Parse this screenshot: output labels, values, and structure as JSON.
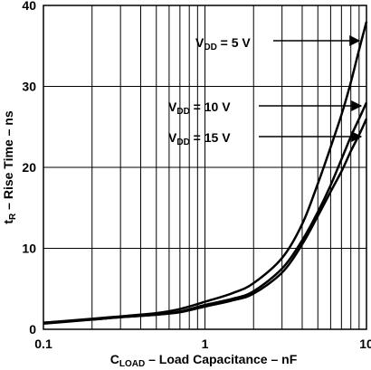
{
  "chart_data": {
    "type": "line",
    "x_scale": "log",
    "xlim": [
      0.1,
      10
    ],
    "ylim": [
      0,
      40
    ],
    "grid": true,
    "x_ticks": [
      0.1,
      1,
      10
    ],
    "x_tick_labels": [
      "0.1",
      "1",
      "10"
    ],
    "y_ticks": [
      0,
      10,
      20,
      30,
      40
    ],
    "y_tick_labels": [
      "0",
      "10",
      "20",
      "30",
      "40"
    ],
    "xlabel": {
      "main": "C",
      "sub": "LOAD",
      "rest": " –  Load Capacitance – nF"
    },
    "ylabel": {
      "main": "t",
      "sub": "R",
      "rest": " – Rise Time – ns"
    },
    "series": [
      {
        "annotation": {
          "main": "V",
          "sub": "DD",
          "rest": " = 5 V"
        },
        "x": [
          0.1,
          0.2,
          0.3,
          0.5,
          0.7,
          1,
          1.5,
          2,
          3,
          4,
          5,
          6,
          7,
          8,
          9,
          10
        ],
        "y": [
          0.8,
          1.3,
          1.6,
          2.0,
          2.5,
          3.4,
          4.5,
          5.7,
          8.8,
          13,
          18,
          22.5,
          26.5,
          30.5,
          34.5,
          38
        ]
      },
      {
        "annotation": {
          "main": "V",
          "sub": "DD",
          "rest": " = 10 V"
        },
        "x": [
          0.1,
          0.2,
          0.3,
          0.5,
          0.7,
          1,
          1.5,
          2,
          3,
          4,
          5,
          6,
          7,
          8,
          9,
          10
        ],
        "y": [
          0.8,
          1.2,
          1.5,
          1.8,
          2.2,
          3.0,
          3.8,
          4.7,
          7.5,
          11,
          14.5,
          17.8,
          21,
          23.8,
          26,
          28
        ]
      },
      {
        "annotation": {
          "main": "V",
          "sub": "DD",
          "rest": " = 15 V"
        },
        "x": [
          0.1,
          0.2,
          0.3,
          0.5,
          0.7,
          1,
          1.5,
          2,
          3,
          4,
          5,
          6,
          7,
          8,
          9,
          10
        ],
        "y": [
          0.7,
          1.2,
          1.5,
          1.8,
          2.1,
          2.8,
          3.6,
          4.4,
          7.0,
          10.5,
          14,
          17,
          19.5,
          22,
          24,
          26
        ]
      }
    ]
  }
}
